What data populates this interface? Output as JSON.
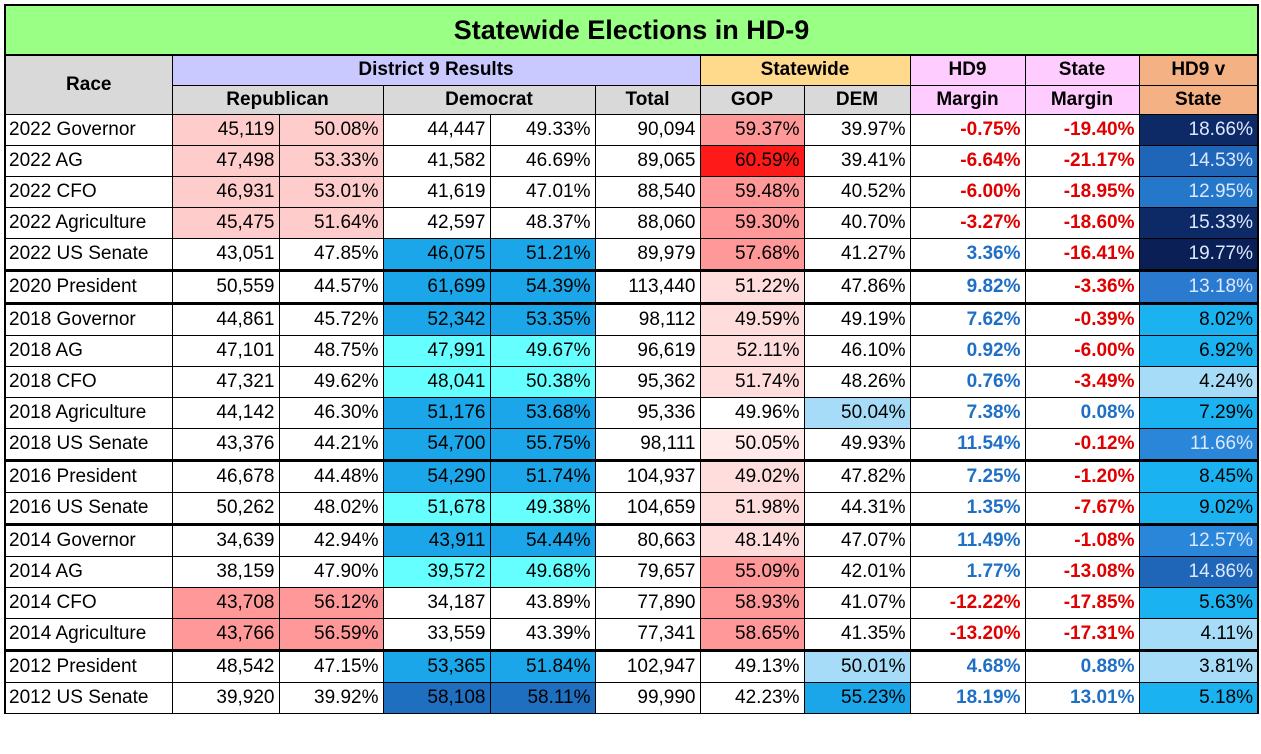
{
  "title": "Statewide Elections in HD-9",
  "headers": {
    "race": "Race",
    "district_results": "District 9 Results",
    "statewide": "Statewide",
    "hd9_margin_1": "HD9",
    "hd9_margin_2": "Margin",
    "state_margin_1": "State",
    "state_margin_2": "Margin",
    "hd9_v_state_1": "HD9 v",
    "hd9_v_state_2": "State",
    "republican": "Republican",
    "democrat": "Democrat",
    "total": "Total",
    "gop": "GOP",
    "dem": "DEM"
  },
  "rows": [
    {
      "race": "2022 Governor",
      "r_votes": "45,119",
      "r_pct": "50.08%",
      "d_votes": "44,447",
      "d_pct": "49.33%",
      "total": "90,094",
      "gop": "59.37%",
      "dem": "39.97%",
      "hd9_margin": "-0.75%",
      "state_margin": "-19.40%",
      "diff": "18.66%",
      "r_bg": "#ffcccc",
      "d_bg": "#ffffff",
      "gop_bg": "#ff9999",
      "dem_bg": "#ffffff",
      "diff_bg": "#0d2a66",
      "diff_fg": "#dce8ff",
      "group_start": false
    },
    {
      "race": "2022 AG",
      "r_votes": "47,498",
      "r_pct": "53.33%",
      "d_votes": "41,582",
      "d_pct": "46.69%",
      "total": "89,065",
      "gop": "60.59%",
      "dem": "39.41%",
      "hd9_margin": "-6.64%",
      "state_margin": "-21.17%",
      "diff": "14.53%",
      "r_bg": "#ffcccc",
      "d_bg": "#ffffff",
      "gop_bg": "#ff1a1a",
      "dem_bg": "#ffffff",
      "diff_bg": "#1f66b8",
      "diff_fg": "#dce8ff",
      "group_start": false
    },
    {
      "race": "2022 CFO",
      "r_votes": "46,931",
      "r_pct": "53.01%",
      "d_votes": "41,619",
      "d_pct": "47.01%",
      "total": "88,540",
      "gop": "59.48%",
      "dem": "40.52%",
      "hd9_margin": "-6.00%",
      "state_margin": "-18.95%",
      "diff": "12.95%",
      "r_bg": "#ffcccc",
      "d_bg": "#ffffff",
      "gop_bg": "#ff9999",
      "dem_bg": "#ffffff",
      "diff_bg": "#2577c9",
      "diff_fg": "#dce8ff",
      "group_start": false
    },
    {
      "race": "2022 Agriculture",
      "r_votes": "45,475",
      "r_pct": "51.64%",
      "d_votes": "42,597",
      "d_pct": "48.37%",
      "total": "88,060",
      "gop": "59.30%",
      "dem": "40.70%",
      "hd9_margin": "-3.27%",
      "state_margin": "-18.60%",
      "diff": "15.33%",
      "r_bg": "#ffcccc",
      "d_bg": "#ffffff",
      "gop_bg": "#ff9999",
      "dem_bg": "#ffffff",
      "diff_bg": "#0d2a66",
      "diff_fg": "#dce8ff",
      "group_start": false
    },
    {
      "race": "2022 US Senate",
      "r_votes": "43,051",
      "r_pct": "47.85%",
      "d_votes": "46,075",
      "d_pct": "51.21%",
      "total": "89,979",
      "gop": "57.68%",
      "dem": "41.27%",
      "hd9_margin": "3.36%",
      "state_margin": "-16.41%",
      "diff": "19.77%",
      "r_bg": "#ffffff",
      "d_bg": "#1aa6e8",
      "gop_bg": "#ff9999",
      "dem_bg": "#ffffff",
      "diff_bg": "#0a1f55",
      "diff_fg": "#dce8ff",
      "group_start": false
    },
    {
      "race": "2020 President",
      "r_votes": "50,559",
      "r_pct": "44.57%",
      "d_votes": "61,699",
      "d_pct": "54.39%",
      "total": "113,440",
      "gop": "51.22%",
      "dem": "47.86%",
      "hd9_margin": "9.82%",
      "state_margin": "-3.36%",
      "diff": "13.18%",
      "r_bg": "#ffffff",
      "d_bg": "#1aa6e8",
      "gop_bg": "#ffdddd",
      "dem_bg": "#ffffff",
      "diff_bg": "#2a7bd0",
      "diff_fg": "#dce8ff",
      "group_start": true
    },
    {
      "race": "2018 Governor",
      "r_votes": "44,861",
      "r_pct": "45.72%",
      "d_votes": "52,342",
      "d_pct": "53.35%",
      "total": "98,112",
      "gop": "49.59%",
      "dem": "49.19%",
      "hd9_margin": "7.62%",
      "state_margin": "-0.39%",
      "diff": "8.02%",
      "r_bg": "#ffffff",
      "d_bg": "#1aa6e8",
      "gop_bg": "#ffdddd",
      "dem_bg": "#ffffff",
      "diff_bg": "#1ab2f0",
      "diff_fg": "#000000",
      "group_start": true
    },
    {
      "race": "2018 AG",
      "r_votes": "47,101",
      "r_pct": "48.75%",
      "d_votes": "47,991",
      "d_pct": "49.67%",
      "total": "96,619",
      "gop": "52.11%",
      "dem": "46.10%",
      "hd9_margin": "0.92%",
      "state_margin": "-6.00%",
      "diff": "6.92%",
      "r_bg": "#ffffff",
      "d_bg": "#66ffff",
      "gop_bg": "#ffdddd",
      "dem_bg": "#ffffff",
      "diff_bg": "#1ab2f0",
      "diff_fg": "#000000",
      "group_start": false
    },
    {
      "race": "2018 CFO",
      "r_votes": "47,321",
      "r_pct": "49.62%",
      "d_votes": "48,041",
      "d_pct": "50.38%",
      "total": "95,362",
      "gop": "51.74%",
      "dem": "48.26%",
      "hd9_margin": "0.76%",
      "state_margin": "-3.49%",
      "diff": "4.24%",
      "r_bg": "#ffffff",
      "d_bg": "#66ffff",
      "gop_bg": "#ffdddd",
      "dem_bg": "#ffffff",
      "diff_bg": "#a6dcf7",
      "diff_fg": "#000000",
      "group_start": false
    },
    {
      "race": "2018 Agriculture",
      "r_votes": "44,142",
      "r_pct": "46.30%",
      "d_votes": "51,176",
      "d_pct": "53.68%",
      "total": "95,336",
      "gop": "49.96%",
      "dem": "50.04%",
      "hd9_margin": "7.38%",
      "state_margin": "0.08%",
      "diff": "7.29%",
      "r_bg": "#ffffff",
      "d_bg": "#1aa6e8",
      "gop_bg": "#ffffff",
      "dem_bg": "#a6dcf7",
      "diff_bg": "#1ab2f0",
      "diff_fg": "#000000",
      "group_start": false
    },
    {
      "race": "2018 US Senate",
      "r_votes": "43,376",
      "r_pct": "44.21%",
      "d_votes": "54,700",
      "d_pct": "55.75%",
      "total": "98,111",
      "gop": "50.05%",
      "dem": "49.93%",
      "hd9_margin": "11.54%",
      "state_margin": "-0.12%",
      "diff": "11.66%",
      "r_bg": "#ffffff",
      "d_bg": "#1aa6e8",
      "gop_bg": "#ffe9e9",
      "dem_bg": "#ffffff",
      "diff_bg": "#2a86d8",
      "diff_fg": "#dce8ff",
      "group_start": false
    },
    {
      "race": "2016 President",
      "r_votes": "46,678",
      "r_pct": "44.48%",
      "d_votes": "54,290",
      "d_pct": "51.74%",
      "total": "104,937",
      "gop": "49.02%",
      "dem": "47.82%",
      "hd9_margin": "7.25%",
      "state_margin": "-1.20%",
      "diff": "8.45%",
      "r_bg": "#ffffff",
      "d_bg": "#1aa6e8",
      "gop_bg": "#ffdddd",
      "dem_bg": "#ffffff",
      "diff_bg": "#1ab2f0",
      "diff_fg": "#000000",
      "group_start": true
    },
    {
      "race": "2016 US Senate",
      "r_votes": "50,262",
      "r_pct": "48.02%",
      "d_votes": "51,678",
      "d_pct": "49.38%",
      "total": "104,659",
      "gop": "51.98%",
      "dem": "44.31%",
      "hd9_margin": "1.35%",
      "state_margin": "-7.67%",
      "diff": "9.02%",
      "r_bg": "#ffffff",
      "d_bg": "#66ffff",
      "gop_bg": "#ffdddd",
      "dem_bg": "#ffffff",
      "diff_bg": "#1ab2f0",
      "diff_fg": "#000000",
      "group_start": false
    },
    {
      "race": "2014 Governor",
      "r_votes": "34,639",
      "r_pct": "42.94%",
      "d_votes": "43,911",
      "d_pct": "54.44%",
      "total": "80,663",
      "gop": "48.14%",
      "dem": "47.07%",
      "hd9_margin": "11.49%",
      "state_margin": "-1.08%",
      "diff": "12.57%",
      "r_bg": "#ffffff",
      "d_bg": "#1aa6e8",
      "gop_bg": "#ffdddd",
      "dem_bg": "#ffffff",
      "diff_bg": "#2a86d8",
      "diff_fg": "#dce8ff",
      "group_start": true
    },
    {
      "race": "2014 AG",
      "r_votes": "38,159",
      "r_pct": "47.90%",
      "d_votes": "39,572",
      "d_pct": "49.68%",
      "total": "79,657",
      "gop": "55.09%",
      "dem": "42.01%",
      "hd9_margin": "1.77%",
      "state_margin": "-13.08%",
      "diff": "14.86%",
      "r_bg": "#ffffff",
      "d_bg": "#66ffff",
      "gop_bg": "#ff9999",
      "dem_bg": "#ffffff",
      "diff_bg": "#1f66b8",
      "diff_fg": "#dce8ff",
      "group_start": false
    },
    {
      "race": "2014 CFO",
      "r_votes": "43,708",
      "r_pct": "56.12%",
      "d_votes": "34,187",
      "d_pct": "43.89%",
      "total": "77,890",
      "gop": "58.93%",
      "dem": "41.07%",
      "hd9_margin": "-12.22%",
      "state_margin": "-17.85%",
      "diff": "5.63%",
      "r_bg": "#ff9999",
      "d_bg": "#ffffff",
      "gop_bg": "#ff9999",
      "dem_bg": "#ffffff",
      "diff_bg": "#1ab2f0",
      "diff_fg": "#000000",
      "group_start": false
    },
    {
      "race": "2014 Agriculture",
      "r_votes": "43,766",
      "r_pct": "56.59%",
      "d_votes": "33,559",
      "d_pct": "43.39%",
      "total": "77,341",
      "gop": "58.65%",
      "dem": "41.35%",
      "hd9_margin": "-13.20%",
      "state_margin": "-17.31%",
      "diff": "4.11%",
      "r_bg": "#ff9999",
      "d_bg": "#ffffff",
      "gop_bg": "#ff9999",
      "dem_bg": "#ffffff",
      "diff_bg": "#a6dcf7",
      "diff_fg": "#000000",
      "group_start": false
    },
    {
      "race": "2012 President",
      "r_votes": "48,542",
      "r_pct": "47.15%",
      "d_votes": "53,365",
      "d_pct": "51.84%",
      "total": "102,947",
      "gop": "49.13%",
      "dem": "50.01%",
      "hd9_margin": "4.68%",
      "state_margin": "0.88%",
      "diff": "3.81%",
      "r_bg": "#ffffff",
      "d_bg": "#1aa6e8",
      "gop_bg": "#ffffff",
      "dem_bg": "#a6dcf7",
      "diff_bg": "#a6dcf7",
      "diff_fg": "#000000",
      "group_start": true
    },
    {
      "race": "2012 US Senate",
      "r_votes": "39,920",
      "r_pct": "39.92%",
      "d_votes": "58,108",
      "d_pct": "58.11%",
      "total": "99,990",
      "gop": "42.23%",
      "dem": "55.23%",
      "hd9_margin": "18.19%",
      "state_margin": "13.01%",
      "diff": "5.18%",
      "r_bg": "#ffffff",
      "d_bg": "#1f6fc0",
      "gop_bg": "#ffffff",
      "dem_bg": "#1aa6e8",
      "diff_bg": "#1ab2f0",
      "diff_fg": "#000000",
      "group_start": false
    }
  ]
}
